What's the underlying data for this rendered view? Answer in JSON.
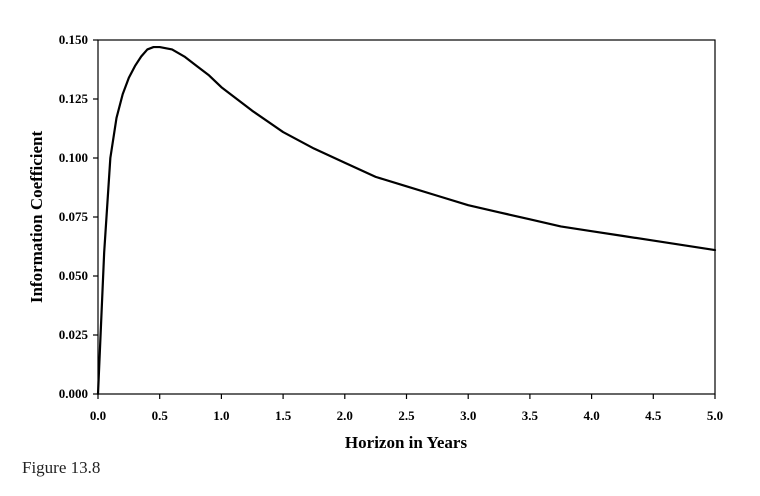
{
  "caption": "Figure 13.8",
  "chart_data": {
    "type": "line",
    "title": "",
    "xlabel": "Horizon in Years",
    "ylabel": "Information Coefficient",
    "xlim": [
      0,
      5
    ],
    "ylim": [
      0,
      0.15
    ],
    "x_ticks": [
      "0.0",
      "0.5",
      "1.0",
      "1.5",
      "2.0",
      "2.5",
      "3.0",
      "3.5",
      "4.0",
      "4.5",
      "5.0"
    ],
    "y_ticks": [
      "0.000",
      "0.025",
      "0.050",
      "0.075",
      "0.100",
      "0.125",
      "0.150"
    ],
    "grid": false,
    "legend": "none",
    "line_color": "#000000",
    "series": [
      {
        "values": [
          [
            0.0,
            0.0
          ],
          [
            0.05,
            0.06
          ],
          [
            0.1,
            0.1
          ],
          [
            0.15,
            0.117
          ],
          [
            0.2,
            0.127
          ],
          [
            0.25,
            0.134
          ],
          [
            0.3,
            0.139
          ],
          [
            0.35,
            0.143
          ],
          [
            0.4,
            0.146
          ],
          [
            0.45,
            0.147
          ],
          [
            0.5,
            0.147
          ],
          [
            0.6,
            0.146
          ],
          [
            0.7,
            0.143
          ],
          [
            0.8,
            0.139
          ],
          [
            0.9,
            0.135
          ],
          [
            1.0,
            0.13
          ],
          [
            1.25,
            0.12
          ],
          [
            1.5,
            0.111
          ],
          [
            1.75,
            0.104
          ],
          [
            2.0,
            0.098
          ],
          [
            2.25,
            0.092
          ],
          [
            2.5,
            0.088
          ],
          [
            2.75,
            0.084
          ],
          [
            3.0,
            0.08
          ],
          [
            3.25,
            0.077
          ],
          [
            3.5,
            0.074
          ],
          [
            3.75,
            0.071
          ],
          [
            4.0,
            0.069
          ],
          [
            4.25,
            0.067
          ],
          [
            4.5,
            0.065
          ],
          [
            4.75,
            0.063
          ],
          [
            5.0,
            0.061
          ]
        ]
      }
    ]
  }
}
